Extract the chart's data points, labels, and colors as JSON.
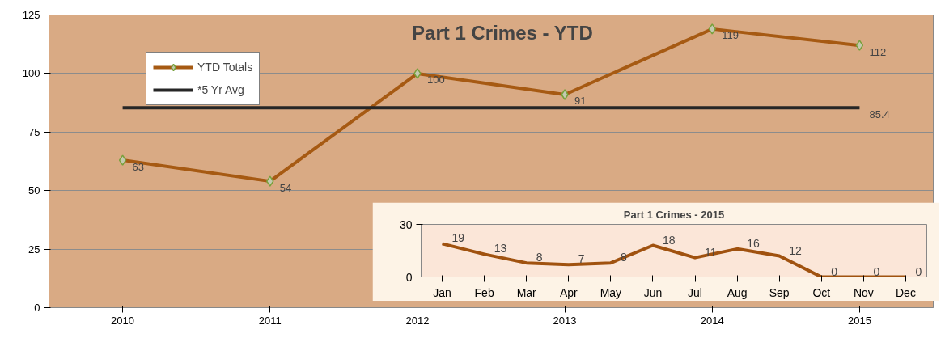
{
  "chart_data": [
    {
      "type": "line",
      "title": "Part 1 Crimes - YTD",
      "categories": [
        "2010",
        "2011",
        "2012",
        "2013",
        "2014",
        "2015"
      ],
      "ylim": [
        0,
        125
      ],
      "yticks": [
        0,
        25,
        50,
        75,
        100,
        125
      ],
      "grid": "y",
      "legend": "top left",
      "line_style": "solid",
      "series": [
        {
          "name": "YTD Totals",
          "color": "#a65a13",
          "marker": "diamond",
          "values": [
            63,
            54,
            100,
            91,
            119,
            112
          ],
          "value_labels": [
            "63",
            "54",
            "100",
            "91",
            "119",
            "112"
          ]
        },
        {
          "name": "*5 Yr Avg",
          "color": "#262626",
          "marker": "none",
          "values": [
            85.4,
            85.4,
            85.4,
            85.4,
            85.4,
            85.4
          ],
          "value_labels": [
            null,
            null,
            null,
            null,
            null,
            "85.4"
          ]
        }
      ]
    },
    {
      "type": "line",
      "title": "Part 1 Crimes - 2015",
      "categories": [
        "Jan",
        "Feb",
        "Mar",
        "Apr",
        "May",
        "Jun",
        "Jul",
        "Aug",
        "Sep",
        "Oct",
        "Nov",
        "Dec"
      ],
      "ylim": [
        0,
        30
      ],
      "yticks": [
        0,
        30
      ],
      "legend": false,
      "data_labels": true,
      "marker": "none",
      "series": [
        {
          "color": "#a0520f",
          "values": [
            19,
            13,
            8,
            7,
            8,
            18,
            11,
            16,
            12,
            0,
            0,
            0
          ]
        }
      ]
    }
  ]
}
